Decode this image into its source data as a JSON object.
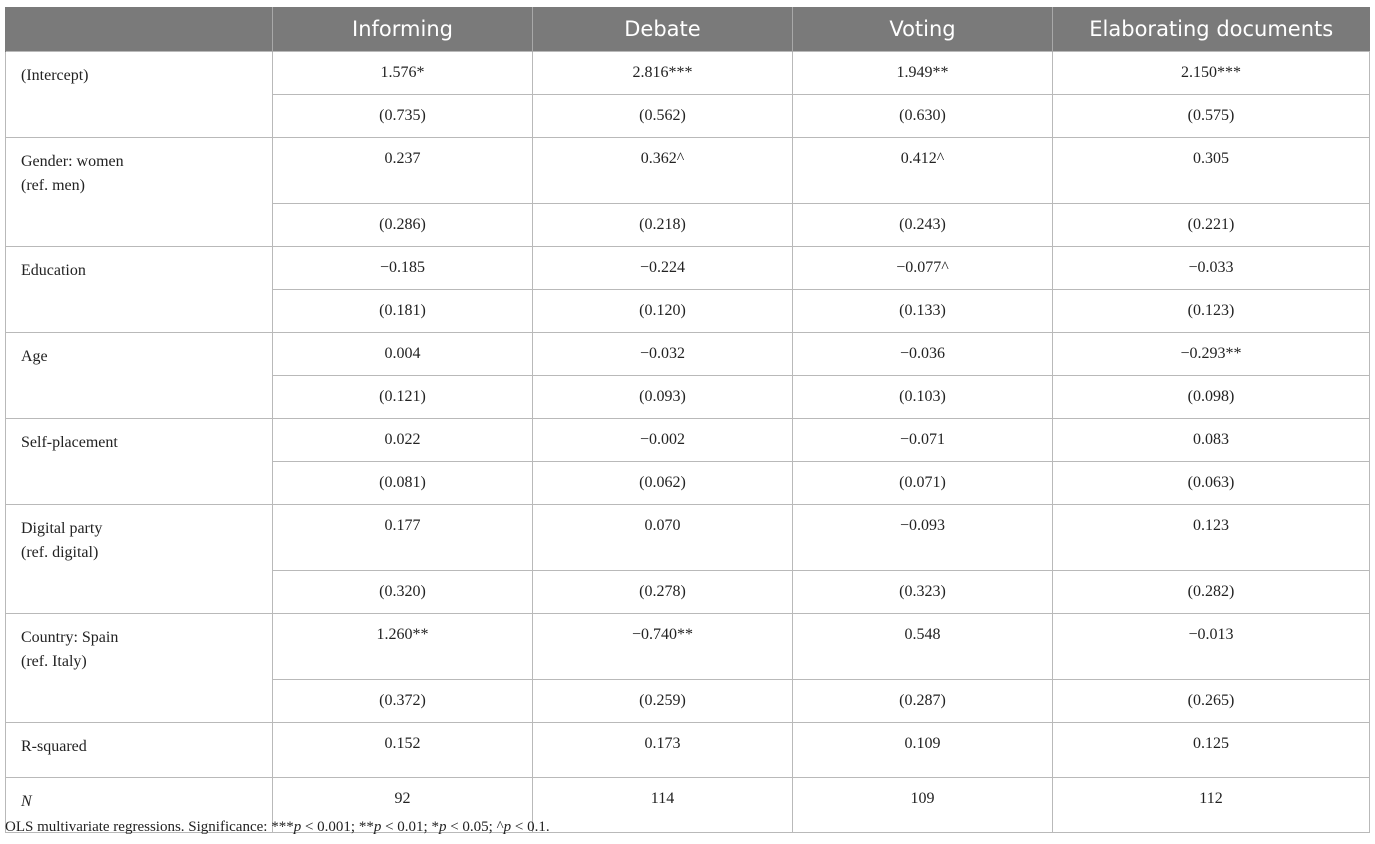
{
  "table": {
    "columns": [
      "",
      "Informing",
      "Debate",
      "Voting",
      "Elaborating documents"
    ],
    "rows": [
      {
        "label": [
          "(Intercept)"
        ],
        "coef": [
          "1.576*",
          "2.816***",
          "1.949**",
          "2.150***"
        ],
        "se": [
          "(0.735)",
          "(0.562)",
          "(0.630)",
          "(0.575)"
        ]
      },
      {
        "label": [
          "Gender: women",
          "(ref. men)"
        ],
        "coef": [
          "0.237",
          "0.362^",
          "0.412^",
          "0.305"
        ],
        "se": [
          "(0.286)",
          "(0.218)",
          "(0.243)",
          "(0.221)"
        ]
      },
      {
        "label": [
          "Education"
        ],
        "coef": [
          "−0.185",
          "−0.224",
          "−0.077^",
          "−0.033"
        ],
        "se": [
          "(0.181)",
          "(0.120)",
          "(0.133)",
          "(0.123)"
        ]
      },
      {
        "label": [
          "Age"
        ],
        "coef": [
          "0.004",
          "−0.032",
          "−0.036",
          "−0.293**"
        ],
        "se": [
          "(0.121)",
          "(0.093)",
          "(0.103)",
          "(0.098)"
        ]
      },
      {
        "label": [
          "Self-placement"
        ],
        "coef": [
          "0.022",
          "−0.002",
          "−0.071",
          "0.083"
        ],
        "se": [
          "(0.081)",
          "(0.062)",
          "(0.071)",
          "(0.063)"
        ]
      },
      {
        "label": [
          "Digital party",
          "(ref. digital)"
        ],
        "coef": [
          "0.177",
          "0.070",
          "−0.093",
          "0.123"
        ],
        "se": [
          "(0.320)",
          "(0.278)",
          "(0.323)",
          "(0.282)"
        ]
      },
      {
        "label": [
          "Country: Spain",
          "(ref. Italy)"
        ],
        "coef": [
          "1.260**",
          "−0.740**",
          "0.548",
          "−0.013"
        ],
        "se": [
          "(0.372)",
          "(0.259)",
          "(0.287)",
          "(0.265)"
        ]
      }
    ],
    "summary": [
      {
        "label": "R-squared",
        "values": [
          "0.152",
          "0.173",
          "0.109",
          "0.125"
        ]
      },
      {
        "label": "N",
        "values": [
          "92",
          "114",
          "109",
          "112"
        ]
      }
    ]
  },
  "note": {
    "lead": "OLS multivariate regressions. Significance: ",
    "parts": [
      {
        "mark": "***",
        "p": "p",
        "rest": " < 0.001; "
      },
      {
        "mark": "**",
        "p": "p",
        "rest": " < 0.01; "
      },
      {
        "mark": "*",
        "p": "p",
        "rest": " < 0.05; "
      },
      {
        "mark": "^",
        "p": "p",
        "rest": " < 0.1."
      }
    ]
  }
}
